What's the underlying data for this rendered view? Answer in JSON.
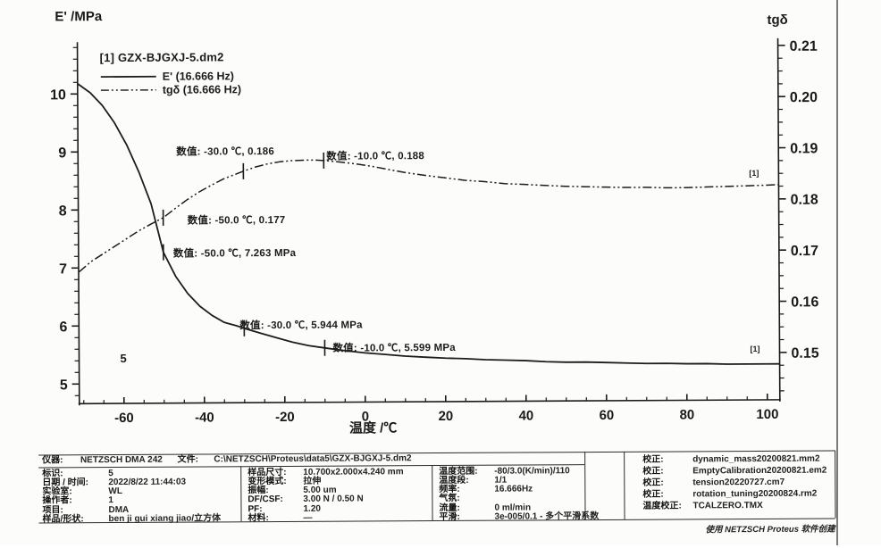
{
  "chart": {
    "left_axis_title": "E' /MPa",
    "right_axis_title": "tgδ",
    "x_axis_title": "温度 /℃",
    "legend": {
      "header": "[1] GZX-BJGXJ-5.dm2",
      "series": [
        {
          "label": "E' (16.666 Hz)",
          "style": "solid"
        },
        {
          "label": "tgδ (16.666 Hz)",
          "style": "dash-dot"
        }
      ]
    },
    "sample_id_label": "5",
    "curve_tags": {
      "tgd": "[1]",
      "e_prime": "[1]"
    }
  },
  "chart_data": {
    "type": "line",
    "xlabel": "温度 /℃",
    "axes": {
      "x": {
        "tick_labels": [
          "-60",
          "-40",
          "-20",
          "0",
          "20",
          "40",
          "60",
          "80",
          "100"
        ],
        "range": [
          -71,
          103
        ],
        "minor_step": 5
      },
      "left": {
        "label": "E' /MPa",
        "tick_labels": [
          "10",
          "9",
          "8",
          "7",
          "6",
          "5"
        ],
        "tick_range": [
          5,
          10
        ],
        "minor_step": 0.2
      },
      "right": {
        "label": "tgδ",
        "tick_labels": [
          "0.21",
          "0.20",
          "0.19",
          "0.18",
          "0.17",
          "0.16",
          "0.15"
        ],
        "tick_range": [
          0.15,
          0.21
        ],
        "minor_step": 0.0025
      }
    },
    "series": [
      {
        "name": "E' (16.666 Hz)",
        "axis": "left",
        "unit": "MPa",
        "points": [
          [
            -71,
            10.17
          ],
          [
            -68,
            10.02
          ],
          [
            -65,
            9.8
          ],
          [
            -62,
            9.5
          ],
          [
            -59,
            9.12
          ],
          [
            -56,
            8.65
          ],
          [
            -53,
            8.1
          ],
          [
            -50,
            7.263
          ],
          [
            -47,
            6.85
          ],
          [
            -44,
            6.55
          ],
          [
            -41,
            6.33
          ],
          [
            -38,
            6.17
          ],
          [
            -35,
            6.05
          ],
          [
            -32,
            5.99
          ],
          [
            -30,
            5.944
          ],
          [
            -26,
            5.86
          ],
          [
            -22,
            5.78
          ],
          [
            -18,
            5.7
          ],
          [
            -14,
            5.64
          ],
          [
            -10,
            5.599
          ],
          [
            -5,
            5.55
          ],
          [
            0,
            5.51
          ],
          [
            5,
            5.48
          ],
          [
            10,
            5.45
          ],
          [
            15,
            5.43
          ],
          [
            20,
            5.41
          ],
          [
            25,
            5.4
          ],
          [
            30,
            5.38
          ],
          [
            35,
            5.37
          ],
          [
            40,
            5.36
          ],
          [
            45,
            5.34
          ],
          [
            50,
            5.33
          ],
          [
            55,
            5.33
          ],
          [
            60,
            5.32
          ],
          [
            65,
            5.31
          ],
          [
            70,
            5.3
          ],
          [
            75,
            5.3
          ],
          [
            80,
            5.29
          ],
          [
            85,
            5.29
          ],
          [
            90,
            5.28
          ],
          [
            95,
            5.28
          ],
          [
            100,
            5.28
          ],
          [
            103,
            5.28
          ]
        ]
      },
      {
        "name": "tgδ (16.666 Hz)",
        "axis": "right",
        "unit": "",
        "points": [
          [
            -71,
            0.1665
          ],
          [
            -68,
            0.1685
          ],
          [
            -65,
            0.17
          ],
          [
            -62,
            0.1715
          ],
          [
            -59,
            0.173
          ],
          [
            -56,
            0.1745
          ],
          [
            -53,
            0.1758
          ],
          [
            -50,
            0.177
          ],
          [
            -47,
            0.1788
          ],
          [
            -44,
            0.1805
          ],
          [
            -41,
            0.182
          ],
          [
            -38,
            0.1833
          ],
          [
            -35,
            0.1845
          ],
          [
            -32,
            0.1854
          ],
          [
            -30,
            0.186
          ],
          [
            -27,
            0.1868
          ],
          [
            -24,
            0.1874
          ],
          [
            -21,
            0.1878
          ],
          [
            -18,
            0.188
          ],
          [
            -15,
            0.1881
          ],
          [
            -12,
            0.1881
          ],
          [
            -10,
            0.188
          ],
          [
            -6,
            0.1877
          ],
          [
            -2,
            0.1873
          ],
          [
            2,
            0.1868
          ],
          [
            6,
            0.1862
          ],
          [
            10,
            0.1856
          ],
          [
            15,
            0.185
          ],
          [
            20,
            0.1845
          ],
          [
            25,
            0.184
          ],
          [
            30,
            0.1837
          ],
          [
            35,
            0.1833
          ],
          [
            40,
            0.1831
          ],
          [
            45,
            0.1829
          ],
          [
            50,
            0.1827
          ],
          [
            55,
            0.1826
          ],
          [
            60,
            0.1825
          ],
          [
            65,
            0.1824
          ],
          [
            70,
            0.1824
          ],
          [
            75,
            0.1823
          ],
          [
            80,
            0.1823
          ],
          [
            85,
            0.1824
          ],
          [
            90,
            0.1825
          ],
          [
            95,
            0.1826
          ],
          [
            100,
            0.1827
          ],
          [
            103,
            0.1828
          ]
        ]
      }
    ],
    "annotated_points": [
      {
        "series": "tgδ",
        "x": -30,
        "y": 0.186,
        "label": "数值: -30.0 ℃, 0.186"
      },
      {
        "series": "tgδ",
        "x": -10,
        "y": 0.188,
        "label": "数值: -10.0 ℃, 0.188"
      },
      {
        "series": "tgδ",
        "x": -50,
        "y": 0.177,
        "label": "数值: -50.0 ℃, 0.177"
      },
      {
        "series": "E'",
        "x": -50,
        "y": 7.263,
        "label": "数值: -50.0 ℃, 7.263 MPa"
      },
      {
        "series": "E'",
        "x": -30,
        "y": 5.944,
        "label": "数值: -30.0 ℃, 5.944 MPa"
      },
      {
        "series": "E'",
        "x": -10,
        "y": 5.599,
        "label": "数值: -10.0 ℃, 5.599 MPa"
      }
    ]
  },
  "info_table": {
    "row1": {
      "label1": "仪器:",
      "value1": "NETZSCH DMA 242",
      "label2": "文件:",
      "value2": "C:\\NETZSCH\\Proteus\\data5\\GZX-BJGXJ-5.dm2"
    },
    "col1": [
      {
        "label": "标识:",
        "value": "5"
      },
      {
        "label": "日期 / 时间:",
        "value": "2022/8/22 11:44:03"
      },
      {
        "label": "实验室:",
        "value": "WL"
      },
      {
        "label": "操作者:",
        "value": "1"
      },
      {
        "label": "项目:",
        "value": "DMA"
      },
      {
        "label": "样品/形状:",
        "value": "ben ji gui xiang jiao/立方体"
      }
    ],
    "col2": [
      {
        "label": "样品尺寸:",
        "value": "10.700x2.000x4.240 mm"
      },
      {
        "label": "变形模式:",
        "value": "拉伸"
      },
      {
        "label": "振幅:",
        "value": "5.00 um"
      },
      {
        "label": "DF/CSF:",
        "value": "3.00 N / 0.50 N"
      },
      {
        "label": "PF:",
        "value": "1.20"
      },
      {
        "label": "材料:",
        "value": "—"
      }
    ],
    "col3": [
      {
        "label": "温度范围:",
        "value": "-80/3.0(K/min)/110"
      },
      {
        "label": "温度段:",
        "value": "1/1"
      },
      {
        "label": "频率:",
        "value": "16.666Hz"
      },
      {
        "label": "气氛:",
        "value": ""
      },
      {
        "label": "流量:",
        "value": "0 ml/min"
      },
      {
        "label": "平滑:",
        "value": "3e-005/0.1 - 多个平滑系数"
      }
    ],
    "col4": [
      {
        "label": "校正:",
        "value": "dynamic_mass20200821.mm2"
      },
      {
        "label": "校正:",
        "value": "EmptyCalibration20200821.em2"
      },
      {
        "label": "校正:",
        "value": "tension20220727.cm7"
      },
      {
        "label": "校正:",
        "value": "rotation_tuning20200824.rm2"
      },
      {
        "label": "温度校正:",
        "value": "TCALZERO.TMX"
      }
    ],
    "footer_credit": "使用 NETZSCH Proteus 软件创建"
  }
}
